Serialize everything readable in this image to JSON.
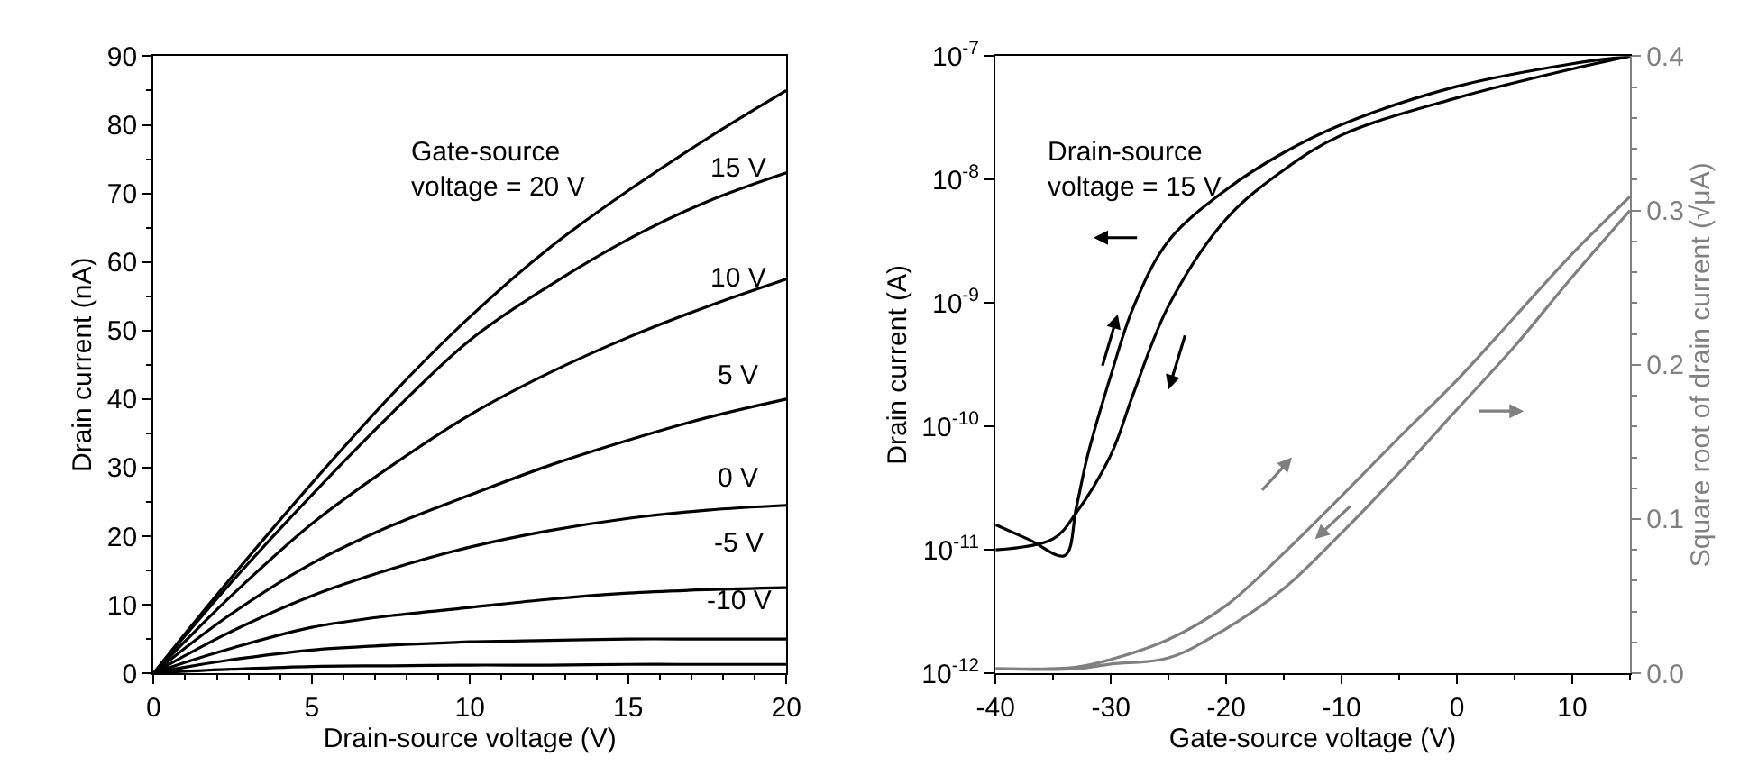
{
  "chart_data": [
    {
      "type": "line",
      "xlabel": "Drain-source voltage (V)",
      "ylabel": "Drain current (nA)",
      "x": [
        0,
        1,
        2.5,
        5,
        7.5,
        10,
        12.5,
        15,
        17.5,
        20
      ],
      "series": [
        {
          "color": "#000000",
          "values": [
            0,
            5.8,
            14.2,
            27.7,
            40.5,
            52,
            62,
            70.4,
            78,
            85
          ]
        },
        {
          "color": "#000000",
          "values": [
            0,
            5.5,
            13.5,
            26,
            37.8,
            48.6,
            56.5,
            63.3,
            68.8,
            73
          ]
        },
        {
          "color": "#000000",
          "values": [
            0,
            4.7,
            11.5,
            21.8,
            30.2,
            37.7,
            43.8,
            49,
            53.5,
            57.5
          ]
        },
        {
          "color": "#000000",
          "values": [
            0,
            3.7,
            8.8,
            16,
            21.5,
            26,
            30.3,
            34,
            37.3,
            40
          ]
        },
        {
          "color": "#000000",
          "values": [
            0,
            2.6,
            6.2,
            11.3,
            15.2,
            18.4,
            20.8,
            22.6,
            23.8,
            24.5
          ]
        },
        {
          "color": "#000000",
          "values": [
            0,
            1.6,
            3.7,
            6.7,
            8.4,
            9.6,
            10.8,
            11.7,
            12.2,
            12.5
          ]
        },
        {
          "color": "#000000",
          "values": [
            0,
            0.9,
            2,
            3.4,
            4.1,
            4.6,
            4.8,
            5,
            5,
            5
          ]
        },
        {
          "color": "#000000",
          "values": [
            0,
            0.3,
            0.6,
            1,
            1.1,
            1.2,
            1.2,
            1.3,
            1.3,
            1.3
          ]
        }
      ],
      "xlim": [
        0,
        20
      ],
      "xticks": [
        0,
        5,
        10,
        15,
        20
      ],
      "ylim": [
        0,
        90
      ],
      "yticks": [
        0,
        10,
        20,
        30,
        40,
        50,
        60,
        70,
        80,
        90
      ],
      "marker": "none",
      "line_style": "solid",
      "annotations": [
        "Gate-source\nvoltage = 20 V",
        "15 V",
        "10 V",
        "5 V",
        "0 V",
        "-5 V",
        "-10 V"
      ]
    },
    {
      "type": "line",
      "xlabel": "Gate-source voltage (V)",
      "ylabel": "Drain current (A)",
      "y2label": "Square root of drain current (√μA)",
      "series": [
        {
          "color": "#000000",
          "x": [
            -40,
            -37,
            -34,
            -33,
            -32,
            -30,
            -28,
            -25,
            -20,
            -15,
            -10,
            0,
            10,
            15
          ],
          "values": [
            1.6e-11,
            1.2e-11,
            9e-12,
            2.2e-11,
            5.9e-11,
            2.6e-10,
            9.5e-10,
            3.2e-09,
            8.3e-09,
            1.66e-08,
            2.8e-08,
            5.7e-08,
            8.7e-08,
            1e-07
          ]
        },
        {
          "color": "#000000",
          "x": [
            -40,
            -35,
            -33,
            -30,
            -28,
            -25,
            -20,
            -15,
            -10,
            0,
            10,
            15
          ],
          "values": [
            1e-11,
            1.23e-11,
            2e-11,
            5.9e-11,
            1.9e-10,
            9.5e-10,
            4.8e-09,
            1.2e-08,
            2.3e-08,
            4.6e-08,
            7.9e-08,
            1e-07
          ]
        },
        {
          "color": "#808080",
          "axis": "y2",
          "x": [
            -40,
            -33,
            -30,
            -25,
            -20,
            -15,
            -10,
            -5,
            0,
            5,
            10,
            15
          ],
          "values": [
            0.003,
            0.004,
            0.009,
            0.022,
            0.044,
            0.078,
            0.115,
            0.153,
            0.19,
            0.231,
            0.272,
            0.309
          ]
        },
        {
          "color": "#808080",
          "axis": "y2",
          "x": [
            -40,
            -33,
            -30,
            -25,
            -20,
            -15,
            -10,
            -5,
            0,
            5,
            10,
            15
          ],
          "values": [
            0.003,
            0.003,
            0.006,
            0.01,
            0.029,
            0.055,
            0.091,
            0.13,
            0.171,
            0.212,
            0.257,
            0.3
          ]
        }
      ],
      "log": "y",
      "xlim": [
        -40,
        15
      ],
      "xticks": [
        -40,
        -30,
        -20,
        -10,
        0,
        10
      ],
      "ylim": [
        1e-12,
        1e-07
      ],
      "yticks": [
        {
          "value": 1e-12,
          "label": "10$^{-12}$"
        },
        {
          "value": 1e-11,
          "label": "10$^{-11}$"
        },
        {
          "value": 1e-10,
          "label": "10$^{-10}$"
        },
        {
          "value": 1e-09,
          "label": "10$^{-9}$"
        },
        {
          "value": 1e-08,
          "label": "10$^{-8}$"
        },
        {
          "value": 1e-07,
          "label": "10$^{-7}$"
        }
      ],
      "y2lim": [
        0,
        0.4
      ],
      "y2ticks": [
        {
          "value": 0,
          "label": "0.0"
        },
        {
          "value": 0.1,
          "label": "0.1"
        },
        {
          "value": 0.2,
          "label": "0.2"
        },
        {
          "value": 0.3,
          "label": "0.3"
        },
        {
          "value": 0.4,
          "label": "0.4"
        }
      ],
      "marker": "none",
      "line_style": "solid",
      "annotations": [
        "Drain-source\nvoltage = 15 V"
      ]
    }
  ]
}
